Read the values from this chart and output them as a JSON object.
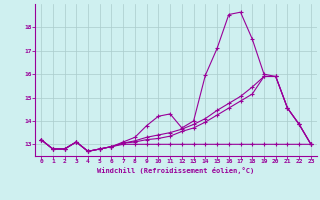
{
  "xlabel": "Windchill (Refroidissement éolien,°C)",
  "background_color": "#cff0f0",
  "line_color": "#990099",
  "grid_color": "#aacccc",
  "x_hours": [
    0,
    1,
    2,
    3,
    4,
    5,
    6,
    7,
    8,
    9,
    10,
    11,
    12,
    13,
    14,
    15,
    16,
    17,
    18,
    19,
    20,
    21,
    22,
    23
  ],
  "line_spike": [
    13.2,
    12.8,
    12.8,
    13.1,
    12.7,
    12.8,
    12.9,
    13.1,
    13.3,
    13.8,
    14.2,
    14.3,
    13.7,
    14.0,
    15.95,
    17.1,
    18.55,
    18.65,
    17.5,
    16.0,
    15.9,
    14.55,
    13.85,
    13.0
  ],
  "line_diag1": [
    13.2,
    12.8,
    12.8,
    13.1,
    12.7,
    12.8,
    12.9,
    13.05,
    13.1,
    13.2,
    13.25,
    13.35,
    13.55,
    13.7,
    13.95,
    14.25,
    14.55,
    14.85,
    15.15,
    15.9,
    15.9,
    14.55,
    13.85,
    13.0
  ],
  "line_diag2": [
    13.2,
    12.8,
    12.8,
    13.1,
    12.7,
    12.8,
    12.9,
    13.05,
    13.15,
    13.3,
    13.4,
    13.5,
    13.65,
    13.85,
    14.1,
    14.45,
    14.75,
    15.05,
    15.45,
    15.9,
    15.9,
    14.55,
    13.85,
    13.0
  ],
  "line_flat": [
    13.2,
    12.8,
    12.8,
    13.1,
    12.7,
    12.8,
    12.9,
    13.0,
    13.0,
    13.0,
    13.0,
    13.0,
    13.0,
    13.0,
    13.0,
    13.0,
    13.0,
    13.0,
    13.0,
    13.0,
    13.0,
    13.0,
    13.0,
    13.0
  ],
  "ylim": [
    12.5,
    19.0
  ],
  "xlim": [
    -0.5,
    23.5
  ],
  "yticks": [
    13,
    14,
    15,
    16,
    17,
    18
  ],
  "xticks": [
    0,
    1,
    2,
    3,
    4,
    5,
    6,
    7,
    8,
    9,
    10,
    11,
    12,
    13,
    14,
    15,
    16,
    17,
    18,
    19,
    20,
    21,
    22,
    23
  ]
}
